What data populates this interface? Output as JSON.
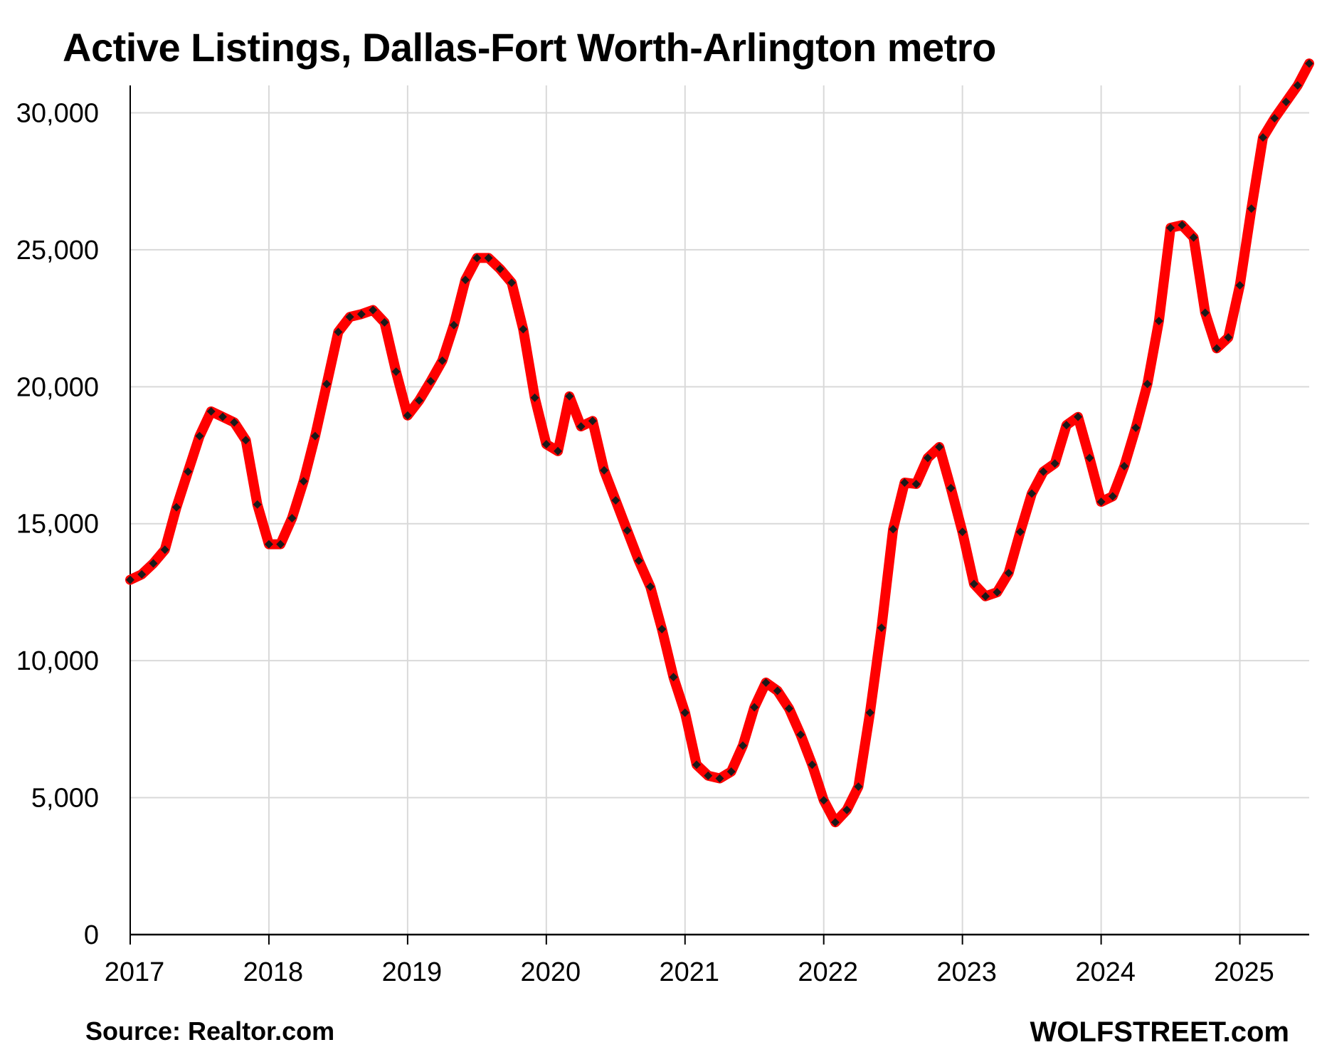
{
  "title": "Active Listings, Dallas-Fort Worth-Arlington metro",
  "source": "Source: Realtor.com",
  "brand": "WOLFSTREET.com",
  "colors": {
    "line": "#ff0000",
    "markers": "#1a1a1a",
    "grid": "#d9d9d9",
    "axis": "#000000"
  },
  "chart_data": {
    "type": "line",
    "title": "Active Listings, Dallas-Fort Worth-Arlington metro",
    "xlabel": "",
    "ylabel": "",
    "ylim": [
      0,
      31000
    ],
    "y_ticks": [
      0,
      5000,
      10000,
      15000,
      20000,
      25000,
      30000
    ],
    "y_tick_labels": [
      "0",
      "5,000",
      "10,000",
      "15,000",
      "20,000",
      "25,000",
      "30,000"
    ],
    "x_tick_labels": [
      "2017",
      "2018",
      "2019",
      "2020",
      "2021",
      "2022",
      "2023",
      "2024",
      "2025"
    ],
    "x_start": "2017-01",
    "x_end": "2025-07",
    "grid": true,
    "series": [
      {
        "frequency": "monthly",
        "x": [
          "2017-01",
          "2017-02",
          "2017-03",
          "2017-04",
          "2017-05",
          "2017-06",
          "2017-07",
          "2017-08",
          "2017-09",
          "2017-10",
          "2017-11",
          "2017-12",
          "2018-01",
          "2018-02",
          "2018-03",
          "2018-04",
          "2018-05",
          "2018-06",
          "2018-07",
          "2018-08",
          "2018-09",
          "2018-10",
          "2018-11",
          "2018-12",
          "2019-01",
          "2019-02",
          "2019-03",
          "2019-04",
          "2019-05",
          "2019-06",
          "2019-07",
          "2019-08",
          "2019-09",
          "2019-10",
          "2019-11",
          "2019-12",
          "2020-01",
          "2020-02",
          "2020-03",
          "2020-04",
          "2020-05",
          "2020-06",
          "2020-07",
          "2020-08",
          "2020-09",
          "2020-10",
          "2020-11",
          "2020-12",
          "2021-01",
          "2021-02",
          "2021-03",
          "2021-04",
          "2021-05",
          "2021-06",
          "2021-07",
          "2021-08",
          "2021-09",
          "2021-10",
          "2021-11",
          "2021-12",
          "2022-01",
          "2022-02",
          "2022-03",
          "2022-04",
          "2022-05",
          "2022-06",
          "2022-07",
          "2022-08",
          "2022-09",
          "2022-10",
          "2022-11",
          "2022-12",
          "2023-01",
          "2023-02",
          "2023-03",
          "2023-04",
          "2023-05",
          "2023-06",
          "2023-07",
          "2023-08",
          "2023-09",
          "2023-10",
          "2023-11",
          "2023-12",
          "2024-01",
          "2024-02",
          "2024-03",
          "2024-04",
          "2024-05",
          "2024-06",
          "2024-07",
          "2024-08",
          "2024-09",
          "2024-10",
          "2024-11",
          "2024-12",
          "2025-01",
          "2025-02",
          "2025-03",
          "2025-04",
          "2025-05",
          "2025-06",
          "2025-07"
        ],
        "values": [
          12950,
          13150,
          13550,
          14050,
          15600,
          16900,
          18200,
          19100,
          18900,
          18700,
          18050,
          15700,
          14250,
          14250,
          15200,
          16550,
          18200,
          20100,
          22000,
          22550,
          22650,
          22800,
          22350,
          20550,
          18950,
          19500,
          20200,
          20950,
          22250,
          23900,
          24700,
          24700,
          24300,
          23800,
          22100,
          19600,
          17900,
          17650,
          19650,
          18550,
          18750,
          16950,
          15850,
          14750,
          13650,
          12700,
          11150,
          9400,
          8100,
          6200,
          5800,
          5700,
          5950,
          6900,
          8300,
          9200,
          8900,
          8250,
          7300,
          6200,
          4900,
          4100,
          4550,
          5400,
          8100,
          11200,
          14800,
          16500,
          16450,
          17400,
          17800,
          16300,
          14700,
          12800,
          12350,
          12500,
          13200,
          14700,
          16100,
          16900,
          17200,
          18600,
          18900,
          17400,
          15800,
          16000,
          17100,
          18500,
          20100,
          22400,
          25800,
          25900,
          25450,
          22700,
          21400,
          21800,
          23700,
          26500,
          29100,
          29800,
          30400,
          31000,
          31800
        ]
      }
    ]
  }
}
